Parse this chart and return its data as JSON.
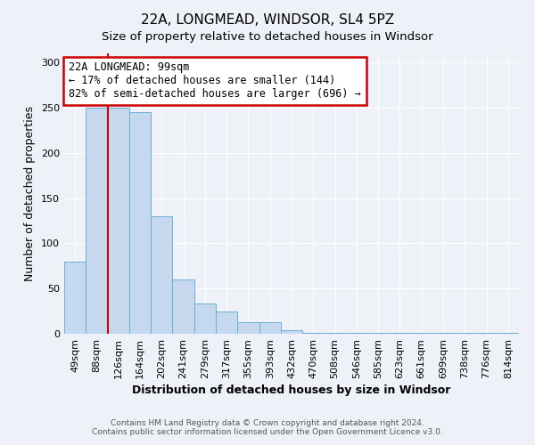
{
  "title_line1": "22A, LONGMEAD, WINDSOR, SL4 5PZ",
  "title_line2": "Size of property relative to detached houses in Windsor",
  "xlabel": "Distribution of detached houses by size in Windsor",
  "ylabel": "Number of detached properties",
  "categories": [
    "49sqm",
    "88sqm",
    "126sqm",
    "164sqm",
    "202sqm",
    "241sqm",
    "279sqm",
    "317sqm",
    "355sqm",
    "393sqm",
    "432sqm",
    "470sqm",
    "508sqm",
    "546sqm",
    "585sqm",
    "623sqm",
    "661sqm",
    "699sqm",
    "738sqm",
    "776sqm",
    "814sqm"
  ],
  "values": [
    80,
    250,
    250,
    245,
    130,
    60,
    33,
    25,
    13,
    13,
    4,
    1,
    1,
    1,
    1,
    1,
    1,
    1,
    1,
    1,
    1
  ],
  "bar_color": "#c5d8ee",
  "bar_edge_color": "#6aaed6",
  "red_line_color": "#cc0000",
  "annotation_text": "22A LONGMEAD: 99sqm\n← 17% of detached houses are smaller (144)\n82% of semi-detached houses are larger (696) →",
  "annotation_box_facecolor": "#ffffff",
  "annotation_box_edgecolor": "#cc0000",
  "ylim_max": 310,
  "yticks": [
    0,
    50,
    100,
    150,
    200,
    250,
    300
  ],
  "footer_line1": "Contains HM Land Registry data © Crown copyright and database right 2024.",
  "footer_line2": "Contains public sector information licensed under the Open Government Licence v3.0.",
  "background_color": "#eef2f8",
  "grid_color": "#ffffff",
  "title_fontsize": 11,
  "xlabel_fontsize": 9,
  "ylabel_fontsize": 9,
  "tick_fontsize": 8,
  "footer_fontsize": 6.5
}
